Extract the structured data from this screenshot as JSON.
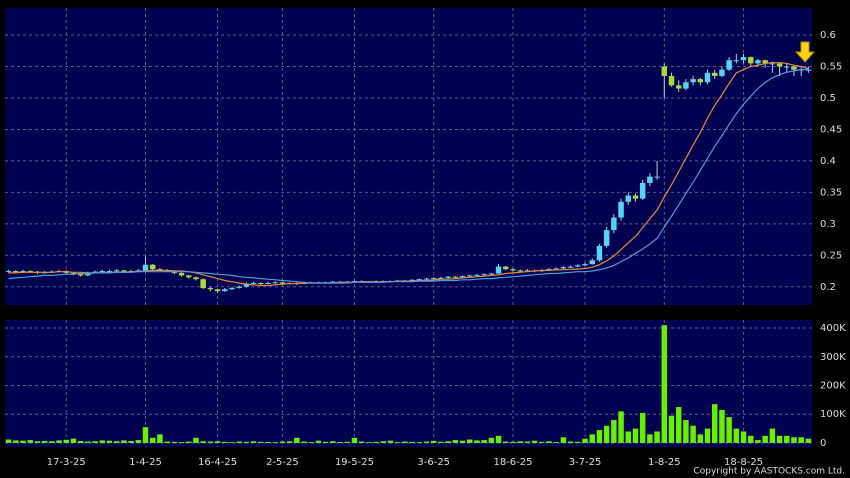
{
  "chart_data": [
    {
      "type": "candlestick",
      "up_color": "#55d4f5",
      "down_color": "#a6dc3a",
      "wick_color": "#cccccc",
      "ylim": [
        0.171,
        0.643
      ],
      "yticks": [
        0.2,
        0.25,
        0.3,
        0.35,
        0.4,
        0.45,
        0.5,
        0.55,
        0.6
      ],
      "grid": true,
      "candles": [
        [
          0.224,
          0.227,
          0.222,
          0.225
        ],
        [
          0.225,
          0.226,
          0.221,
          0.223
        ],
        [
          0.223,
          0.227,
          0.222,
          0.225
        ],
        [
          0.225,
          0.226,
          0.222,
          0.224
        ],
        [
          0.224,
          0.225,
          0.22,
          0.222
        ],
        [
          0.222,
          0.225,
          0.221,
          0.223
        ],
        [
          0.223,
          0.226,
          0.222,
          0.224
        ],
        [
          0.224,
          0.227,
          0.223,
          0.225
        ],
        [
          0.225,
          0.226,
          0.22,
          0.222
        ],
        [
          0.222,
          0.223,
          0.218,
          0.22
        ],
        [
          0.22,
          0.221,
          0.216,
          0.218
        ],
        [
          0.218,
          0.224,
          0.217,
          0.222
        ],
        [
          0.222,
          0.226,
          0.221,
          0.224
        ],
        [
          0.224,
          0.227,
          0.223,
          0.225
        ],
        [
          0.225,
          0.227,
          0.223,
          0.225
        ],
        [
          0.225,
          0.228,
          0.224,
          0.226
        ],
        [
          0.226,
          0.227,
          0.222,
          0.224
        ],
        [
          0.224,
          0.227,
          0.223,
          0.225
        ],
        [
          0.225,
          0.228,
          0.224,
          0.226
        ],
        [
          0.226,
          0.248,
          0.225,
          0.235
        ],
        [
          0.235,
          0.236,
          0.226,
          0.228
        ],
        [
          0.228,
          0.23,
          0.224,
          0.226
        ],
        [
          0.226,
          0.228,
          0.223,
          0.225
        ],
        [
          0.225,
          0.226,
          0.22,
          0.222
        ],
        [
          0.222,
          0.223,
          0.216,
          0.218
        ],
        [
          0.218,
          0.219,
          0.213,
          0.215
        ],
        [
          0.215,
          0.216,
          0.21,
          0.212
        ],
        [
          0.212,
          0.213,
          0.196,
          0.198
        ],
        [
          0.198,
          0.2,
          0.193,
          0.196
        ],
        [
          0.196,
          0.197,
          0.19,
          0.193
        ],
        [
          0.193,
          0.198,
          0.192,
          0.196
        ],
        [
          0.196,
          0.2,
          0.195,
          0.198
        ],
        [
          0.198,
          0.202,
          0.197,
          0.2
        ],
        [
          0.2,
          0.207,
          0.199,
          0.205
        ],
        [
          0.205,
          0.208,
          0.204,
          0.206
        ],
        [
          0.206,
          0.207,
          0.203,
          0.205
        ],
        [
          0.205,
          0.208,
          0.204,
          0.206
        ],
        [
          0.206,
          0.209,
          0.205,
          0.207
        ],
        [
          0.207,
          0.208,
          0.203,
          0.205
        ],
        [
          0.205,
          0.207,
          0.204,
          0.206
        ],
        [
          0.206,
          0.207,
          0.203,
          0.205
        ],
        [
          0.205,
          0.207,
          0.204,
          0.206
        ],
        [
          0.206,
          0.208,
          0.205,
          0.207
        ],
        [
          0.207,
          0.208,
          0.205,
          0.206
        ],
        [
          0.206,
          0.208,
          0.205,
          0.207
        ],
        [
          0.207,
          0.209,
          0.206,
          0.208
        ],
        [
          0.208,
          0.209,
          0.206,
          0.207
        ],
        [
          0.207,
          0.209,
          0.206,
          0.208
        ],
        [
          0.208,
          0.21,
          0.207,
          0.209
        ],
        [
          0.209,
          0.21,
          0.207,
          0.208
        ],
        [
          0.208,
          0.209,
          0.207,
          0.208
        ],
        [
          0.208,
          0.21,
          0.207,
          0.209
        ],
        [
          0.209,
          0.21,
          0.207,
          0.208
        ],
        [
          0.208,
          0.21,
          0.207,
          0.209
        ],
        [
          0.209,
          0.211,
          0.208,
          0.21
        ],
        [
          0.21,
          0.211,
          0.209,
          0.21
        ],
        [
          0.21,
          0.212,
          0.209,
          0.211
        ],
        [
          0.211,
          0.213,
          0.21,
          0.212
        ],
        [
          0.212,
          0.214,
          0.211,
          0.213
        ],
        [
          0.213,
          0.215,
          0.212,
          0.214
        ],
        [
          0.214,
          0.216,
          0.212,
          0.214
        ],
        [
          0.214,
          0.217,
          0.213,
          0.216
        ],
        [
          0.216,
          0.217,
          0.214,
          0.215
        ],
        [
          0.215,
          0.218,
          0.214,
          0.217
        ],
        [
          0.217,
          0.219,
          0.216,
          0.218
        ],
        [
          0.218,
          0.22,
          0.217,
          0.219
        ],
        [
          0.219,
          0.221,
          0.218,
          0.22
        ],
        [
          0.22,
          0.222,
          0.219,
          0.221
        ],
        [
          0.221,
          0.236,
          0.22,
          0.232
        ],
        [
          0.232,
          0.233,
          0.226,
          0.228
        ],
        [
          0.228,
          0.229,
          0.224,
          0.226
        ],
        [
          0.226,
          0.227,
          0.223,
          0.225
        ],
        [
          0.225,
          0.228,
          0.224,
          0.226
        ],
        [
          0.226,
          0.227,
          0.223,
          0.225
        ],
        [
          0.225,
          0.228,
          0.224,
          0.226
        ],
        [
          0.226,
          0.23,
          0.225,
          0.228
        ],
        [
          0.228,
          0.231,
          0.227,
          0.229
        ],
        [
          0.229,
          0.233,
          0.228,
          0.231
        ],
        [
          0.231,
          0.234,
          0.23,
          0.232
        ],
        [
          0.232,
          0.236,
          0.231,
          0.234
        ],
        [
          0.234,
          0.238,
          0.233,
          0.236
        ],
        [
          0.236,
          0.245,
          0.235,
          0.242
        ],
        [
          0.242,
          0.268,
          0.24,
          0.265
        ],
        [
          0.265,
          0.295,
          0.262,
          0.29
        ],
        [
          0.29,
          0.315,
          0.285,
          0.31
        ],
        [
          0.31,
          0.34,
          0.305,
          0.335
        ],
        [
          0.335,
          0.35,
          0.33,
          0.345
        ],
        [
          0.345,
          0.348,
          0.335,
          0.34
        ],
        [
          0.34,
          0.37,
          0.338,
          0.365
        ],
        [
          0.365,
          0.38,
          0.36,
          0.375
        ],
        [
          0.375,
          0.4,
          0.37,
          0.375
        ],
        [
          0.55,
          0.555,
          0.5,
          0.535
        ],
        [
          0.535,
          0.54,
          0.518,
          0.52
        ],
        [
          0.52,
          0.528,
          0.51,
          0.515
        ],
        [
          0.515,
          0.53,
          0.512,
          0.525
        ],
        [
          0.525,
          0.535,
          0.52,
          0.53
        ],
        [
          0.53,
          0.532,
          0.52,
          0.525
        ],
        [
          0.525,
          0.545,
          0.522,
          0.54
        ],
        [
          0.54,
          0.545,
          0.53,
          0.535
        ],
        [
          0.535,
          0.55,
          0.533,
          0.545
        ],
        [
          0.545,
          0.565,
          0.543,
          0.56
        ],
        [
          0.56,
          0.57,
          0.555,
          0.56
        ],
        [
          0.56,
          0.57,
          0.555,
          0.565
        ],
        [
          0.565,
          0.566,
          0.55,
          0.555
        ],
        [
          0.555,
          0.562,
          0.55,
          0.56
        ],
        [
          0.56,
          0.561,
          0.548,
          0.555
        ],
        [
          0.555,
          0.558,
          0.54,
          0.555
        ],
        [
          0.555,
          0.556,
          0.535,
          0.55
        ],
        [
          0.55,
          0.555,
          0.54,
          0.55
        ],
        [
          0.55,
          0.552,
          0.535,
          0.545
        ],
        [
          0.545,
          0.55,
          0.535,
          0.545
        ],
        [
          0.545,
          0.55,
          0.54,
          0.545
        ]
      ],
      "series": [
        {
          "color": "#e8893c",
          "values": [
            0.222,
            0.222,
            0.223,
            0.223,
            0.223,
            0.223,
            0.223,
            0.224,
            0.224,
            0.223,
            0.223,
            0.222,
            0.222,
            0.222,
            0.223,
            0.223,
            0.223,
            0.224,
            0.224,
            0.225,
            0.226,
            0.226,
            0.226,
            0.225,
            0.225,
            0.224,
            0.222,
            0.219,
            0.216,
            0.213,
            0.21,
            0.208,
            0.206,
            0.204,
            0.203,
            0.202,
            0.202,
            0.203,
            0.204,
            0.205,
            0.205,
            0.206,
            0.206,
            0.206,
            0.206,
            0.206,
            0.207,
            0.207,
            0.207,
            0.208,
            0.208,
            0.208,
            0.208,
            0.208,
            0.209,
            0.209,
            0.209,
            0.21,
            0.21,
            0.211,
            0.212,
            0.212,
            0.213,
            0.214,
            0.215,
            0.216,
            0.217,
            0.218,
            0.219,
            0.221,
            0.222,
            0.223,
            0.224,
            0.225,
            0.226,
            0.226,
            0.227,
            0.227,
            0.228,
            0.228,
            0.229,
            0.231,
            0.235,
            0.241,
            0.249,
            0.259,
            0.27,
            0.28,
            0.294,
            0.308,
            0.322,
            0.343,
            0.362,
            0.383,
            0.404,
            0.425,
            0.445,
            0.468,
            0.488,
            0.505,
            0.523,
            0.54,
            0.545,
            0.55,
            0.552,
            0.555,
            0.556,
            0.556,
            0.555,
            0.552,
            0.55,
            0.547
          ]
        },
        {
          "color": "#4f9be0",
          "values": [
            0.213,
            0.214,
            0.215,
            0.216,
            0.217,
            0.218,
            0.218,
            0.219,
            0.22,
            0.22,
            0.221,
            0.221,
            0.222,
            0.222,
            0.222,
            0.223,
            0.223,
            0.223,
            0.224,
            0.224,
            0.224,
            0.224,
            0.224,
            0.224,
            0.224,
            0.224,
            0.223,
            0.222,
            0.221,
            0.22,
            0.219,
            0.218,
            0.216,
            0.215,
            0.214,
            0.213,
            0.212,
            0.211,
            0.21,
            0.209,
            0.208,
            0.207,
            0.206,
            0.206,
            0.206,
            0.206,
            0.206,
            0.206,
            0.207,
            0.207,
            0.207,
            0.207,
            0.207,
            0.208,
            0.208,
            0.208,
            0.208,
            0.209,
            0.209,
            0.209,
            0.21,
            0.21,
            0.21,
            0.211,
            0.211,
            0.212,
            0.213,
            0.213,
            0.214,
            0.215,
            0.216,
            0.217,
            0.218,
            0.219,
            0.22,
            0.221,
            0.221,
            0.222,
            0.223,
            0.224,
            0.224,
            0.225,
            0.227,
            0.23,
            0.234,
            0.24,
            0.246,
            0.253,
            0.26,
            0.268,
            0.277,
            0.295,
            0.312,
            0.33,
            0.348,
            0.366,
            0.385,
            0.404,
            0.423,
            0.44,
            0.458,
            0.475,
            0.49,
            0.503,
            0.515,
            0.525,
            0.532,
            0.537,
            0.541,
            0.543,
            0.545,
            0.546
          ]
        }
      ]
    },
    {
      "type": "bar",
      "color": "#66f000",
      "ylim": [
        -14000,
        428000
      ],
      "yticks": [
        0,
        {
          "value": 100000,
          "label": "100K"
        },
        {
          "value": 200000,
          "label": "200K"
        },
        {
          "value": 300000,
          "label": "300K"
        },
        {
          "value": 400000,
          "label": "400K"
        }
      ],
      "grid": true,
      "values": [
        12000,
        9000,
        8000,
        10000,
        6000,
        7000,
        6000,
        9000,
        11000,
        15000,
        7000,
        5000,
        6000,
        9000,
        8000,
        6000,
        9000,
        7000,
        10000,
        55000,
        18000,
        30000,
        5000,
        4000,
        3000,
        5000,
        18000,
        6000,
        5000,
        6000,
        4000,
        3000,
        5000,
        4000,
        6000,
        4000,
        3000,
        3000,
        5000,
        6000,
        18000,
        5000,
        3000,
        8000,
        4000,
        6000,
        3000,
        4000,
        18000,
        5000,
        3000,
        4000,
        6000,
        8000,
        3000,
        5000,
        4000,
        3000,
        5000,
        7000,
        4000,
        6000,
        10000,
        8000,
        12000,
        9000,
        10000,
        18000,
        25000,
        5000,
        4000,
        6000,
        5000,
        8000,
        4000,
        6000,
        3000,
        20000,
        5000,
        4000,
        15000,
        30000,
        45000,
        60000,
        80000,
        110000,
        40000,
        50000,
        105000,
        30000,
        40000,
        410000,
        95000,
        125000,
        80000,
        60000,
        30000,
        50000,
        135000,
        115000,
        90000,
        50000,
        40000,
        25000,
        10000,
        25000,
        50000,
        25000,
        25000,
        20000,
        20000,
        15000
      ],
      "categories": [
        null,
        null,
        null,
        null,
        null,
        null,
        null,
        null,
        "17-3-25",
        null,
        null,
        null,
        null,
        null,
        null,
        null,
        null,
        null,
        null,
        "1-4-25",
        null,
        null,
        null,
        null,
        null,
        null,
        null,
        null,
        null,
        "16-4-25",
        null,
        null,
        null,
        null,
        null,
        null,
        null,
        null,
        "2-5-25",
        null,
        null,
        null,
        null,
        null,
        null,
        null,
        null,
        null,
        "19-5-25",
        null,
        null,
        null,
        null,
        null,
        null,
        null,
        null,
        null,
        null,
        "3-6-25",
        null,
        null,
        null,
        null,
        null,
        null,
        null,
        null,
        null,
        null,
        "18-6-25",
        null,
        null,
        null,
        null,
        null,
        null,
        null,
        null,
        null,
        "3-7-25",
        null,
        null,
        null,
        null,
        null,
        null,
        null,
        null,
        null,
        null,
        "1-8-25",
        null,
        null,
        null,
        null,
        null,
        null,
        null,
        null,
        null,
        null,
        "18-8-25",
        null,
        null,
        null,
        null,
        null,
        null,
        null,
        null,
        null
      ],
      "copyright": "Copyright by AASTOCKS.com Ltd."
    }
  ]
}
